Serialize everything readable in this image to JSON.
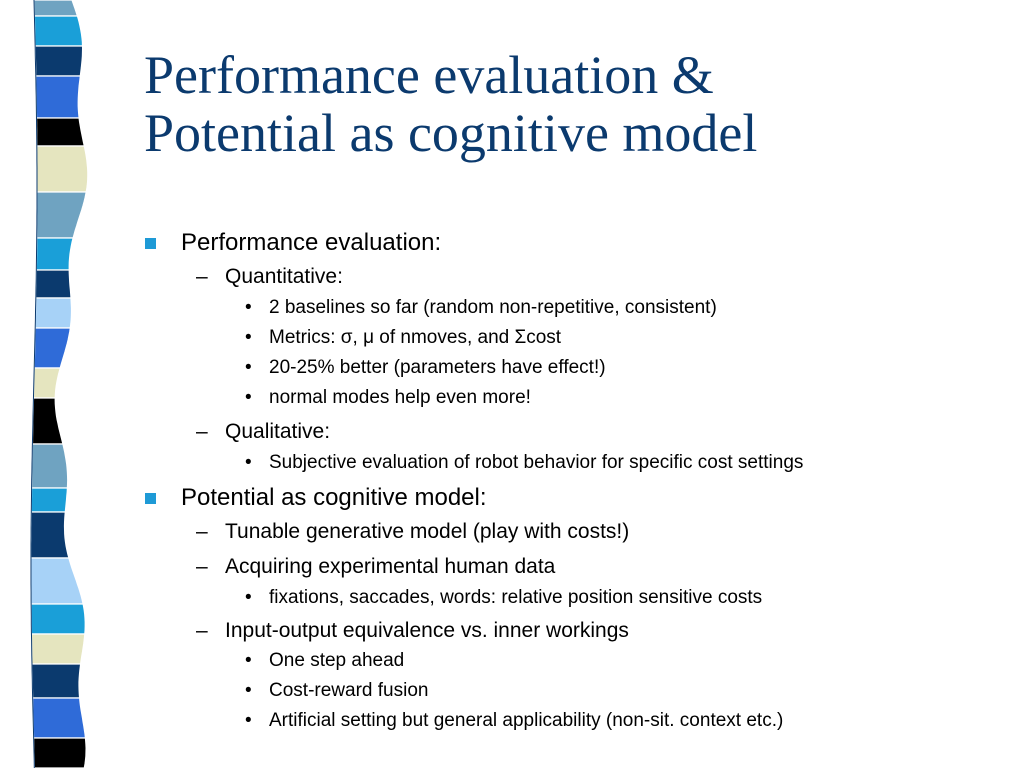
{
  "slide": {
    "title_lines": [
      "Performance evaluation &",
      "Potential as cognitive model"
    ],
    "palette": {
      "title": "#0b3a6e",
      "bullet": "#1e9ad6",
      "strip": [
        "#6fa3c1",
        "#1a9fd8",
        "#0b3a6e",
        "#2f6bd8",
        "#000000",
        "#e5e5bf",
        "#a7d2f7"
      ]
    },
    "outline": [
      {
        "level": 1,
        "marker": "",
        "text": "Performance evaluation:"
      },
      {
        "level": 2,
        "marker": "–",
        "text": "Quantitative:"
      },
      {
        "level": 3,
        "marker": "•",
        "text": "2 baselines so far (random non-repetitive, consistent)"
      },
      {
        "level": 3,
        "marker": "•",
        "text": "Metrics: σ, μ of nmoves, and Σcost"
      },
      {
        "level": 3,
        "marker": "•",
        "text": "20-25% better (parameters have effect!)"
      },
      {
        "level": 3,
        "marker": "•",
        "text": "normal modes help even more!"
      },
      {
        "level": 2,
        "marker": "–",
        "text": "Qualitative:"
      },
      {
        "level": 3,
        "marker": "•",
        "text": "Subjective evaluation of robot behavior for specific cost settings"
      },
      {
        "level": 1,
        "marker": "",
        "text": "Potential as cognitive model:"
      },
      {
        "level": 2,
        "marker": "–",
        "text": "Tunable generative model (play with costs!)"
      },
      {
        "level": 2,
        "marker": "–",
        "text": "Acquiring experimental human data"
      },
      {
        "level": 3,
        "marker": "•",
        "text": "fixations, saccades, words: relative position sensitive costs"
      },
      {
        "level": 2,
        "marker": "–",
        "text": "Input-output equivalence vs. inner workings"
      },
      {
        "level": 3,
        "marker": "•",
        "text": "One step ahead"
      },
      {
        "level": 3,
        "marker": "•",
        "text": "Cost-reward fusion"
      },
      {
        "level": 3,
        "marker": "•",
        "text": "Artificial setting but general applicability (non-sit. context etc.)"
      }
    ]
  }
}
